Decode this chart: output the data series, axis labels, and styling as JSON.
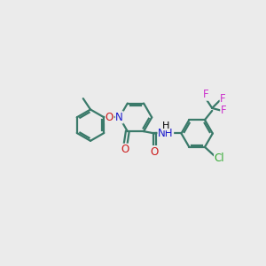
{
  "background_color": "#ebebeb",
  "bond_color": "#3a7a6a",
  "N_color": "#1a1acc",
  "O_color": "#cc1a1a",
  "F_color": "#cc33cc",
  "Cl_color": "#33aa33",
  "line_width": 1.6,
  "font_size": 8.5,
  "figsize": [
    3.0,
    3.0
  ],
  "dpi": 100,
  "xlim": [
    0,
    10
  ],
  "ylim": [
    0,
    10
  ]
}
